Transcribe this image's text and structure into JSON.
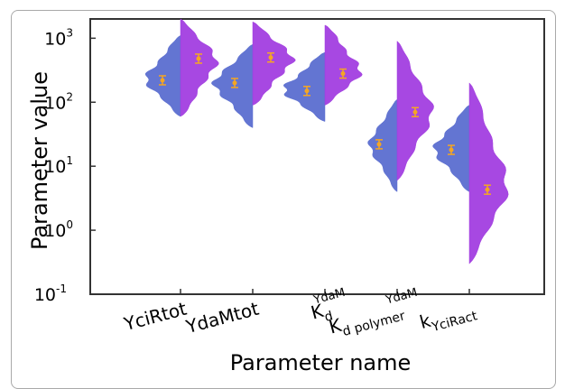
{
  "chart_data": {
    "type": "violin",
    "title": "",
    "xlabel": "Parameter name",
    "ylabel": "Parameter value",
    "yscale": "log",
    "ylim": [
      0.1,
      2000
    ],
    "yticks": [
      {
        "base": "10",
        "exp": "3",
        "value": 1000
      },
      {
        "base": "10",
        "exp": "2",
        "value": 100
      },
      {
        "base": "10",
        "exp": "1",
        "value": 10
      },
      {
        "base": "10",
        "exp": "0",
        "value": 1
      },
      {
        "base": "10",
        "exp": "-1",
        "value": 0.1
      }
    ],
    "categories": [
      {
        "main": "YciRtot",
        "sub": "",
        "sup": ""
      },
      {
        "main": "YdaMtot",
        "sub": "",
        "sup": ""
      },
      {
        "main": "K",
        "sub": "d",
        "sup": "YdaM"
      },
      {
        "main": "K",
        "sub": "d polymer",
        "sup": "YdaM"
      },
      {
        "main": "k",
        "sub": "YciRact",
        "sup": ""
      }
    ],
    "colors": {
      "left": "#5b6ed0",
      "right": "#a23ee0",
      "marker": "#f5a623"
    },
    "series": [
      {
        "side": "left",
        "medians": [
          220,
          200,
          150,
          22,
          18
        ],
        "ranges": [
          [
            60,
            1100
          ],
          [
            40,
            800
          ],
          [
            50,
            600
          ],
          [
            4,
            110
          ],
          [
            4,
            90
          ]
        ],
        "widths": [
          0.38,
          0.42,
          0.45,
          0.3,
          0.38
        ]
      },
      {
        "side": "right",
        "medians": [
          480,
          500,
          280,
          70,
          4.3
        ],
        "ranges": [
          [
            60,
            2000
          ],
          [
            90,
            1800
          ],
          [
            90,
            1600
          ],
          [
            6,
            900
          ],
          [
            0.3,
            200
          ]
        ],
        "widths": [
          0.4,
          0.44,
          0.4,
          0.38,
          0.42
        ]
      }
    ]
  }
}
